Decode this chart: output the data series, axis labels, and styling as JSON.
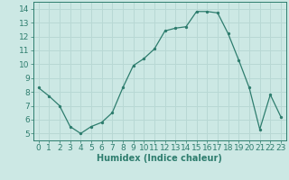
{
  "x": [
    0,
    1,
    2,
    3,
    4,
    5,
    6,
    7,
    8,
    9,
    10,
    11,
    12,
    13,
    14,
    15,
    16,
    17,
    18,
    19,
    20,
    21,
    22,
    23
  ],
  "y": [
    8.3,
    7.7,
    7.0,
    5.5,
    5.0,
    5.5,
    5.8,
    6.5,
    8.3,
    9.9,
    10.4,
    11.1,
    12.4,
    12.6,
    12.7,
    13.8,
    13.8,
    13.7,
    12.2,
    10.3,
    8.3,
    5.3,
    7.8,
    6.2
  ],
  "xlabel": "Humidex (Indice chaleur)",
  "ylim": [
    4.5,
    14.5
  ],
  "xlim": [
    -0.5,
    23.5
  ],
  "yticks": [
    5,
    6,
    7,
    8,
    9,
    10,
    11,
    12,
    13,
    14
  ],
  "xticks": [
    0,
    1,
    2,
    3,
    4,
    5,
    6,
    7,
    8,
    9,
    10,
    11,
    12,
    13,
    14,
    15,
    16,
    17,
    18,
    19,
    20,
    21,
    22,
    23
  ],
  "line_color": "#2e7d6e",
  "marker_color": "#2e7d6e",
  "bg_color": "#cce8e4",
  "grid_color": "#b8d8d4",
  "axis_color": "#2e7d6e",
  "label_color": "#2e7d6e",
  "font_size": 6.5
}
